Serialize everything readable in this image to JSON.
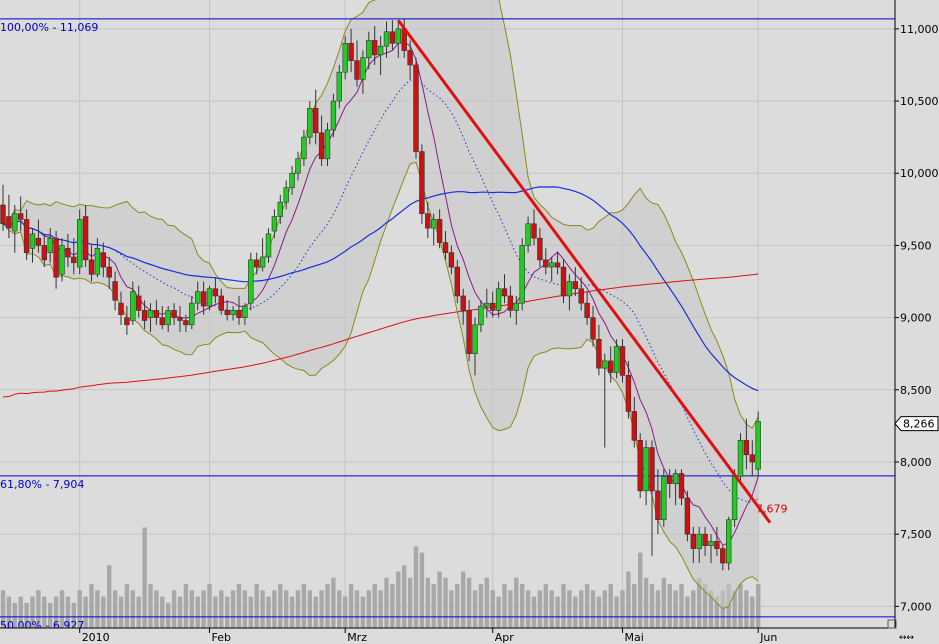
{
  "chart_data": {
    "type": "candlestick",
    "y_axis": {
      "ylim": [
        6.85,
        11.2
      ],
      "tick_labels": [
        "11,000",
        "10,500",
        "10,000",
        "9,500",
        "9,000",
        "8,500",
        "8,000",
        "7,500",
        "7,000"
      ],
      "tick_values": [
        11.0,
        10.5,
        10.0,
        9.5,
        9.0,
        8.5,
        8.0,
        7.5,
        7.0
      ]
    },
    "x_axis": {
      "tick_labels": [
        "2010",
        "Feb",
        "Mrz",
        "Apr",
        "Mai",
        "Jun"
      ],
      "tick_index": [
        13,
        35,
        58,
        83,
        105,
        128
      ]
    },
    "fib_levels": [
      {
        "label": "100,00% - 11,069",
        "value": 11.069
      },
      {
        "label": "61,80% - 7,904",
        "value": 7.904
      },
      {
        "label": "50,00% - 6,927",
        "value": 6.927
      }
    ],
    "last_price_label": "8,266",
    "last_price": 8.266,
    "trendline_label": "7,679",
    "trendline": {
      "start_index": 67,
      "start_value": 11.06,
      "end_index": 130,
      "end_value": 7.58
    },
    "callout_value": 7.679,
    "candles": [
      [
        9.78,
        9.92,
        9.6,
        9.65
      ],
      [
        9.7,
        9.85,
        9.55,
        9.62
      ],
      [
        9.6,
        9.78,
        9.45,
        9.72
      ],
      [
        9.72,
        9.84,
        9.6,
        9.68
      ],
      [
        9.68,
        9.75,
        9.4,
        9.45
      ],
      [
        9.48,
        9.62,
        9.38,
        9.58
      ],
      [
        9.55,
        9.68,
        9.45,
        9.5
      ],
      [
        9.5,
        9.58,
        9.35,
        9.4
      ],
      [
        9.45,
        9.62,
        9.38,
        9.55
      ],
      [
        9.55,
        9.6,
        9.2,
        9.28
      ],
      [
        9.3,
        9.55,
        9.25,
        9.5
      ],
      [
        9.48,
        9.58,
        9.35,
        9.42
      ],
      [
        9.42,
        9.55,
        9.3,
        9.38
      ],
      [
        9.35,
        9.75,
        9.3,
        9.68
      ],
      [
        9.7,
        9.78,
        9.35,
        9.4
      ],
      [
        9.4,
        9.5,
        9.25,
        9.3
      ],
      [
        9.3,
        9.55,
        9.28,
        9.48
      ],
      [
        9.45,
        9.52,
        9.28,
        9.35
      ],
      [
        9.35,
        9.42,
        9.2,
        9.28
      ],
      [
        9.25,
        9.32,
        9.05,
        9.12
      ],
      [
        9.1,
        9.18,
        8.95,
        9.02
      ],
      [
        9.0,
        9.08,
        8.88,
        8.95
      ],
      [
        8.98,
        9.25,
        8.95,
        9.18
      ],
      [
        9.15,
        9.22,
        9.0,
        9.05
      ],
      [
        9.05,
        9.12,
        8.92,
        8.98
      ],
      [
        9.0,
        9.1,
        8.9,
        9.05
      ],
      [
        9.05,
        9.12,
        8.95,
        9.0
      ],
      [
        9.0,
        9.08,
        8.92,
        8.95
      ],
      [
        8.95,
        9.08,
        8.9,
        9.05
      ],
      [
        9.05,
        9.1,
        8.95,
        9.0
      ],
      [
        9.0,
        9.08,
        8.9,
        8.98
      ],
      [
        8.98,
        9.02,
        8.9,
        8.95
      ],
      [
        8.95,
        9.15,
        8.92,
        9.1
      ],
      [
        9.1,
        9.25,
        9.05,
        9.18
      ],
      [
        9.18,
        9.25,
        9.02,
        9.08
      ],
      [
        9.08,
        9.22,
        9.05,
        9.2
      ],
      [
        9.2,
        9.28,
        9.1,
        9.15
      ],
      [
        9.15,
        9.2,
        9.02,
        9.05
      ],
      [
        9.05,
        9.12,
        8.98,
        9.02
      ],
      [
        9.02,
        9.08,
        8.98,
        9.05
      ],
      [
        9.05,
        9.15,
        8.95,
        9.0
      ],
      [
        9.0,
        9.1,
        8.95,
        9.08
      ],
      [
        9.1,
        9.45,
        9.05,
        9.4
      ],
      [
        9.4,
        9.45,
        9.3,
        9.35
      ],
      [
        9.35,
        9.55,
        9.32,
        9.42
      ],
      [
        9.42,
        9.62,
        9.38,
        9.58
      ],
      [
        9.6,
        9.75,
        9.55,
        9.7
      ],
      [
        9.7,
        9.85,
        9.65,
        9.8
      ],
      [
        9.8,
        9.95,
        9.75,
        9.9
      ],
      [
        9.9,
        10.05,
        9.85,
        10.0
      ],
      [
        10.0,
        10.15,
        9.95,
        10.1
      ],
      [
        10.1,
        10.3,
        10.05,
        10.25
      ],
      [
        10.25,
        10.5,
        10.2,
        10.45
      ],
      [
        10.45,
        10.58,
        10.2,
        10.28
      ],
      [
        10.28,
        10.4,
        10.05,
        10.1
      ],
      [
        10.1,
        10.35,
        10.05,
        10.3
      ],
      [
        10.3,
        10.55,
        10.25,
        10.5
      ],
      [
        10.5,
        10.75,
        10.45,
        10.7
      ],
      [
        10.7,
        10.95,
        10.65,
        10.9
      ],
      [
        10.9,
        11.0,
        10.7,
        10.78
      ],
      [
        10.78,
        10.92,
        10.6,
        10.65
      ],
      [
        10.65,
        10.85,
        10.55,
        10.8
      ],
      [
        10.8,
        10.98,
        10.72,
        10.92
      ],
      [
        10.92,
        11.02,
        10.75,
        10.82
      ],
      [
        10.82,
        10.95,
        10.68,
        10.88
      ],
      [
        10.88,
        11.05,
        10.8,
        10.98
      ],
      [
        10.98,
        11.06,
        10.85,
        10.9
      ],
      [
        10.9,
        11.05,
        10.8,
        11.0
      ],
      [
        11.0,
        11.07,
        10.8,
        10.85
      ],
      [
        10.85,
        10.92,
        10.65,
        10.75
      ],
      [
        10.75,
        10.8,
        10.1,
        10.15
      ],
      [
        10.15,
        10.2,
        9.65,
        9.72
      ],
      [
        9.72,
        9.8,
        9.55,
        9.62
      ],
      [
        9.62,
        9.72,
        9.5,
        9.68
      ],
      [
        9.68,
        9.75,
        9.48,
        9.52
      ],
      [
        9.52,
        9.6,
        9.4,
        9.45
      ],
      [
        9.45,
        9.5,
        9.3,
        9.35
      ],
      [
        9.35,
        9.4,
        9.1,
        9.15
      ],
      [
        9.15,
        9.2,
        8.95,
        9.05
      ],
      [
        9.05,
        9.12,
        8.7,
        8.75
      ],
      [
        8.75,
        9.0,
        8.6,
        8.95
      ],
      [
        8.95,
        9.12,
        8.9,
        9.08
      ],
      [
        9.08,
        9.2,
        9.0,
        9.1
      ],
      [
        9.1,
        9.18,
        9.0,
        9.05
      ],
      [
        9.05,
        9.25,
        9.0,
        9.2
      ],
      [
        9.2,
        9.3,
        9.1,
        9.15
      ],
      [
        9.15,
        9.22,
        9.0,
        9.05
      ],
      [
        9.05,
        9.15,
        8.95,
        9.1
      ],
      [
        9.1,
        9.55,
        9.05,
        9.5
      ],
      [
        9.5,
        9.7,
        9.45,
        9.65
      ],
      [
        9.65,
        9.75,
        9.5,
        9.55
      ],
      [
        9.55,
        9.62,
        9.35,
        9.4
      ],
      [
        9.4,
        9.48,
        9.3,
        9.35
      ],
      [
        9.35,
        9.42,
        9.25,
        9.38
      ],
      [
        9.38,
        9.45,
        9.3,
        9.35
      ],
      [
        9.35,
        9.4,
        9.1,
        9.15
      ],
      [
        9.15,
        9.3,
        9.05,
        9.25
      ],
      [
        9.25,
        9.35,
        9.15,
        9.2
      ],
      [
        9.2,
        9.28,
        9.05,
        9.1
      ],
      [
        9.1,
        9.18,
        8.95,
        9.0
      ],
      [
        9.0,
        9.08,
        8.8,
        8.85
      ],
      [
        8.85,
        8.95,
        8.6,
        8.65
      ],
      [
        8.65,
        8.75,
        8.1,
        8.7
      ],
      [
        8.7,
        8.8,
        8.55,
        8.62
      ],
      [
        8.62,
        8.85,
        8.58,
        8.8
      ],
      [
        8.8,
        8.85,
        8.55,
        8.6
      ],
      [
        8.6,
        8.7,
        8.3,
        8.35
      ],
      [
        8.35,
        8.45,
        8.1,
        8.15
      ],
      [
        8.15,
        8.2,
        7.75,
        7.8
      ],
      [
        7.8,
        8.15,
        7.7,
        8.1
      ],
      [
        8.1,
        8.15,
        7.35,
        7.8
      ],
      [
        7.8,
        7.95,
        7.5,
        7.6
      ],
      [
        7.6,
        7.95,
        7.55,
        7.9
      ],
      [
        7.9,
        7.95,
        7.75,
        7.85
      ],
      [
        7.85,
        7.95,
        7.7,
        7.92
      ],
      [
        7.92,
        7.95,
        7.7,
        7.75
      ],
      [
        7.75,
        7.8,
        7.45,
        7.5
      ],
      [
        7.5,
        7.55,
        7.3,
        7.4
      ],
      [
        7.4,
        7.55,
        7.3,
        7.5
      ],
      [
        7.5,
        7.55,
        7.35,
        7.42
      ],
      [
        7.42,
        7.5,
        7.3,
        7.45
      ],
      [
        7.45,
        7.55,
        7.35,
        7.4
      ],
      [
        7.4,
        7.42,
        7.25,
        7.3
      ],
      [
        7.3,
        7.62,
        7.25,
        7.6
      ],
      [
        7.6,
        7.95,
        7.55,
        7.9
      ],
      [
        7.9,
        8.2,
        7.85,
        8.15
      ],
      [
        8.15,
        8.3,
        7.95,
        8.05
      ],
      [
        8.05,
        8.15,
        7.9,
        8.0
      ],
      [
        7.95,
        8.35,
        7.9,
        8.28
      ]
    ],
    "volume": [
      0.06,
      0.05,
      0.04,
      0.05,
      0.04,
      0.05,
      0.06,
      0.05,
      0.04,
      0.05,
      0.06,
      0.05,
      0.04,
      0.06,
      0.05,
      0.07,
      0.06,
      0.05,
      0.1,
      0.06,
      0.05,
      0.07,
      0.06,
      0.05,
      0.16,
      0.07,
      0.06,
      0.05,
      0.04,
      0.06,
      0.05,
      0.07,
      0.06,
      0.05,
      0.06,
      0.07,
      0.05,
      0.06,
      0.05,
      0.06,
      0.07,
      0.06,
      0.05,
      0.07,
      0.06,
      0.05,
      0.06,
      0.07,
      0.06,
      0.05,
      0.06,
      0.07,
      0.06,
      0.05,
      0.06,
      0.07,
      0.08,
      0.06,
      0.05,
      0.07,
      0.06,
      0.05,
      0.06,
      0.07,
      0.06,
      0.08,
      0.07,
      0.09,
      0.1,
      0.08,
      0.13,
      0.12,
      0.08,
      0.07,
      0.09,
      0.08,
      0.06,
      0.07,
      0.09,
      0.08,
      0.06,
      0.07,
      0.08,
      0.06,
      0.05,
      0.07,
      0.06,
      0.08,
      0.07,
      0.06,
      0.05,
      0.06,
      0.07,
      0.06,
      0.05,
      0.07,
      0.06,
      0.05,
      0.06,
      0.07,
      0.06,
      0.05,
      0.06,
      0.07,
      0.05,
      0.06,
      0.09,
      0.07,
      0.12,
      0.08,
      0.07,
      0.06,
      0.08,
      0.07,
      0.06,
      0.07,
      0.05,
      0.06,
      0.08,
      0.07,
      0.06,
      0.05,
      0.06,
      0.07,
      0.06,
      0.07,
      0.06,
      0.05,
      0.07
    ]
  }
}
